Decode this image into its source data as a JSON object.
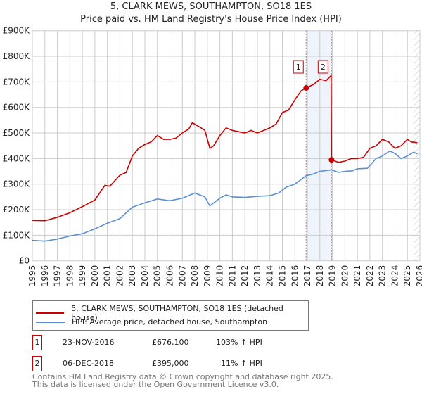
{
  "chart_data": {
    "type": "line",
    "title": "5, CLARK MEWS, SOUTHAMPTON, SO18 1ES",
    "subtitle": "Price paid vs. HM Land Registry's House Price Index (HPI)",
    "xlim": [
      1995,
      2026
    ],
    "ylim": [
      0,
      900000
    ],
    "y_ticks": [
      "£0",
      "£100K",
      "£200K",
      "£300K",
      "£400K",
      "£500K",
      "£600K",
      "£700K",
      "£800K",
      "£900K"
    ],
    "x_ticks": [
      "1995",
      "1996",
      "1997",
      "1998",
      "1999",
      "2000",
      "2001",
      "2002",
      "2003",
      "2004",
      "2005",
      "2006",
      "2007",
      "2008",
      "2009",
      "2010",
      "2011",
      "2012",
      "2013",
      "2014",
      "2015",
      "2016",
      "2017",
      "2018",
      "2019",
      "2020",
      "2021",
      "2022",
      "2023",
      "2024",
      "2025",
      "2026"
    ],
    "grid": true,
    "series": [
      {
        "name": "5, CLARK MEWS, SOUTHAMPTON, SO18 1ES (detached house)",
        "color": "#cc0000",
        "x": [
          1995,
          1996,
          1997,
          1998,
          1999,
          2000,
          2000.8,
          2001.2,
          2002,
          2002.5,
          2003,
          2003.5,
          2004,
          2004.5,
          2005,
          2005.5,
          2006,
          2006.5,
          2007,
          2007.5,
          2007.8,
          2008.5,
          2008.8,
          2009.2,
          2009.5,
          2010,
          2010.5,
          2011,
          2011.5,
          2012,
          2012.5,
          2013,
          2013.5,
          2014,
          2014.5,
          2015,
          2015.5,
          2016,
          2016.5,
          2016.9,
          2017.5,
          2018,
          2018.5,
          2018.9,
          2018.93,
          2019.5,
          2020,
          2020.5,
          2021,
          2021.5,
          2022,
          2022.5,
          2023,
          2023.5,
          2024,
          2024.5,
          2025,
          2025.3,
          2025.8
        ],
        "y": [
          158,
          157,
          170,
          188,
          212,
          238,
          295,
          292,
          335,
          345,
          410,
          440,
          455,
          465,
          490,
          475,
          475,
          480,
          500,
          515,
          540,
          520,
          510,
          440,
          450,
          490,
          520,
          510,
          505,
          500,
          510,
          500,
          510,
          520,
          535,
          580,
          590,
          630,
          665,
          676.1,
          690,
          710,
          705,
          725,
          395,
          385,
          390,
          400,
          400,
          405,
          440,
          450,
          475,
          465,
          440,
          450,
          475,
          465,
          462
        ]
      },
      {
        "name": "HPI: Average price, detached house, Southampton",
        "color": "#5b8fd4",
        "x": [
          1995,
          1996,
          1997,
          1998,
          1999,
          2000,
          2001,
          2002,
          2003,
          2004,
          2005,
          2006,
          2007,
          2008,
          2008.8,
          2009.2,
          2010,
          2010.5,
          2011,
          2012,
          2013,
          2014,
          2014.7,
          2015.3,
          2016,
          2016.9,
          2017.5,
          2018,
          2018.93,
          2019.5,
          2020,
          2020.6,
          2021,
          2021.8,
          2022.5,
          2023,
          2023.6,
          2024,
          2024.5,
          2025,
          2025.5,
          2025.8
        ],
        "y": [
          80,
          77,
          85,
          97,
          106,
          125,
          147,
          165,
          210,
          227,
          242,
          235,
          245,
          265,
          250,
          215,
          245,
          258,
          250,
          248,
          252,
          255,
          265,
          288,
          300,
          333,
          340,
          350,
          356,
          346,
          350,
          352,
          360,
          362,
          400,
          410,
          430,
          420,
          400,
          410,
          425,
          418
        ]
      }
    ],
    "y_units": "thousands GBP",
    "annotations": [
      {
        "label": "1",
        "x": 2016.9,
        "y": 676.1
      },
      {
        "label": "2",
        "x": 2018.93,
        "y": 395
      }
    ],
    "shaded_range": [
      2016.9,
      2018.93
    ],
    "hatched_from": 2025.5,
    "legend_position": "bottom"
  },
  "transactions": [
    {
      "num": "1",
      "date": "23-NOV-2016",
      "price": "£676,100",
      "hpi": "103% ↑ HPI"
    },
    {
      "num": "2",
      "date": "06-DEC-2018",
      "price": "£395,000",
      "hpi": "11% ↑ HPI"
    }
  ],
  "footer": {
    "line1": "Contains HM Land Registry data © Crown copyright and database right 2025.",
    "line2": "This data is licensed under the Open Government Licence v3.0."
  }
}
